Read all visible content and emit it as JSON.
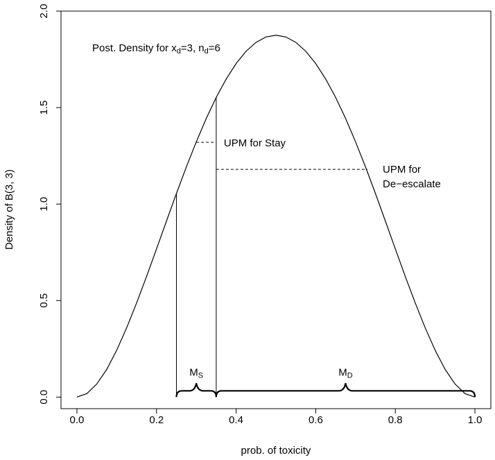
{
  "chart_data": {
    "type": "line",
    "title": [
      "Post. Density for x",
      "d",
      "=3, n",
      "d",
      "=6"
    ],
    "xlabel": "prob. of toxicity",
    "ylabel": "Density of B(3, 3)",
    "x": [
      0,
      0.025,
      0.05,
      0.075,
      0.1,
      0.125,
      0.15,
      0.175,
      0.2,
      0.225,
      0.25,
      0.275,
      0.3,
      0.325,
      0.35,
      0.375,
      0.4,
      0.425,
      0.45,
      0.475,
      0.5,
      0.525,
      0.55,
      0.575,
      0.6,
      0.625,
      0.65,
      0.675,
      0.7,
      0.725,
      0.75,
      0.775,
      0.8,
      0.825,
      0.85,
      0.875,
      0.9,
      0.925,
      0.95,
      0.975,
      1
    ],
    "values": [
      0,
      0.018,
      0.068,
      0.144,
      0.243,
      0.359,
      0.488,
      0.625,
      0.768,
      0.912,
      1.055,
      1.193,
      1.323,
      1.444,
      1.553,
      1.648,
      1.728,
      1.792,
      1.838,
      1.866,
      1.875,
      1.866,
      1.838,
      1.792,
      1.728,
      1.648,
      1.553,
      1.444,
      1.323,
      1.193,
      1.055,
      0.912,
      0.768,
      0.625,
      0.488,
      0.359,
      0.243,
      0.144,
      0.068,
      0.018,
      0
    ],
    "color": "#000000",
    "cutoffs": [
      0.25,
      0.35
    ],
    "upm_lines": [
      {
        "label": [
          "UPM for Stay"
        ],
        "x": [
          0.3,
          0.35
        ],
        "y": 1.32
      },
      {
        "label": [
          "UPM for",
          "De−escalate"
        ],
        "x": [
          0.35,
          0.73
        ],
        "y": 1.18
      }
    ],
    "braces": [
      {
        "label": [
          "M",
          "S"
        ],
        "from": 0.25,
        "to": 0.35
      },
      {
        "label": [
          "M",
          "D"
        ],
        "from": 0.35,
        "to": 1.0
      }
    ],
    "xlim": [
      -0.04,
      1.04
    ],
    "ylim": [
      -0.06,
      2.0
    ],
    "xticks": [
      {
        "value": 0,
        "label": "0.0"
      },
      {
        "value": 0.2,
        "label": "0.2"
      },
      {
        "value": 0.4,
        "label": "0.4"
      },
      {
        "value": 0.6,
        "label": "0.6"
      },
      {
        "value": 0.8,
        "label": "0.8"
      },
      {
        "value": 1,
        "label": "1.0"
      }
    ],
    "yticks": [
      {
        "value": 0,
        "label": "0.0"
      },
      {
        "value": 0.5,
        "label": "0.5"
      },
      {
        "value": 1,
        "label": "1.0"
      },
      {
        "value": 1.5,
        "label": "1.5"
      },
      {
        "value": 2,
        "label": "2.0"
      }
    ]
  }
}
